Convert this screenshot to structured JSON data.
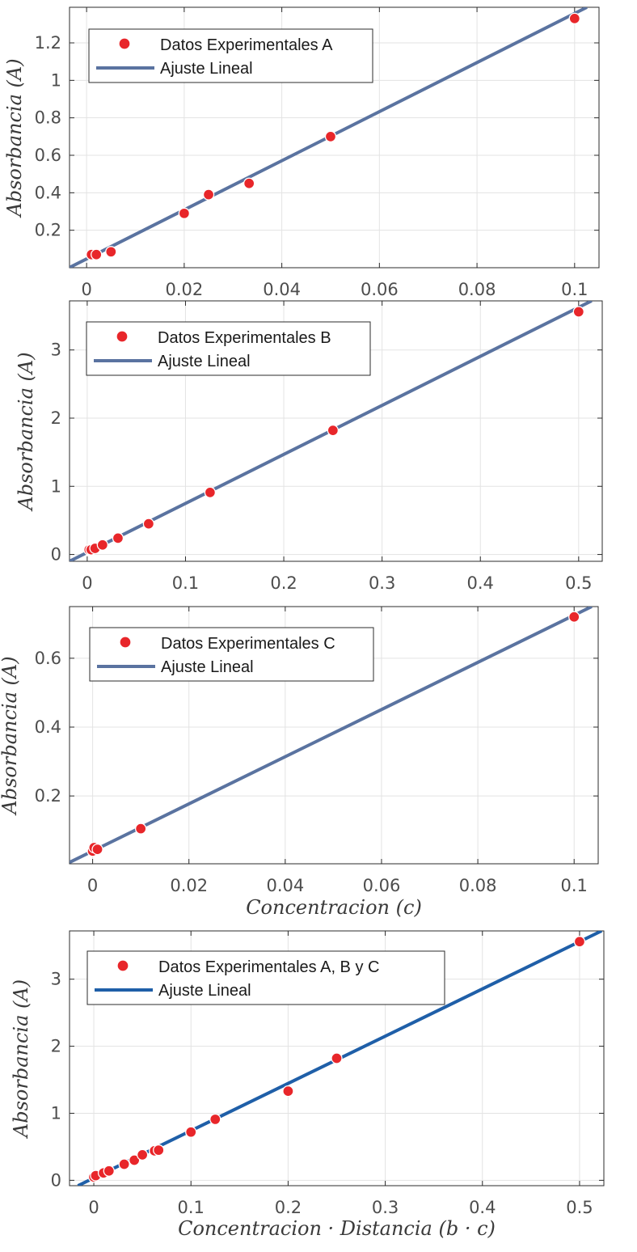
{
  "chart_data": [
    {
      "type": "scatter",
      "xlabel": "",
      "ylabel": "Absorbancia (A)",
      "xlim": [
        -0.0035,
        0.105
      ],
      "ylim": [
        0.0,
        1.39
      ],
      "xticks": [
        0,
        0.02,
        0.04,
        0.06,
        0.08,
        0.1
      ],
      "xtick_labels": [
        "0",
        "0.02",
        "0.04",
        "0.06",
        "0.08",
        "0.1"
      ],
      "yticks": [
        0.2,
        0.4,
        0.6,
        0.8,
        1.0,
        1.2
      ],
      "ytick_labels": [
        "0.2",
        "0.4",
        "0.6",
        "0.8",
        "1",
        "1.2"
      ],
      "grid": true,
      "legend_position": "top-left",
      "points": {
        "name": "Datos Experimentales A",
        "x": [
          0.001,
          0.002,
          0.005,
          0.02,
          0.025,
          0.0333,
          0.05,
          0.1
        ],
        "y": [
          0.07,
          0.07,
          0.085,
          0.29,
          0.39,
          0.45,
          0.7,
          1.33
        ],
        "color": "#e8262a"
      },
      "fit": {
        "name": "Ajuste Lineal",
        "slope": 13.1,
        "intercept": 0.047,
        "color": "#5a73a0"
      }
    },
    {
      "type": "scatter",
      "xlabel": "",
      "ylabel": "Absorbancia (A)",
      "xlim": [
        -0.018,
        0.524
      ],
      "ylim": [
        -0.1,
        3.72
      ],
      "xticks": [
        0,
        0.1,
        0.2,
        0.3,
        0.4,
        0.5
      ],
      "xtick_labels": [
        "0",
        "0.1",
        "0.2",
        "0.3",
        "0.4",
        "0.5"
      ],
      "yticks": [
        0,
        1,
        2,
        3
      ],
      "ytick_labels": [
        "0",
        "1",
        "2",
        "3"
      ],
      "grid": true,
      "legend_position": "top-left",
      "points": {
        "name": "Datos Experimentales B",
        "x": [
          0.002,
          0.004,
          0.008,
          0.0156,
          0.0313,
          0.0625,
          0.125,
          0.25,
          0.5
        ],
        "y": [
          0.07,
          0.07,
          0.09,
          0.14,
          0.24,
          0.45,
          0.91,
          1.82,
          3.56
        ],
        "color": "#e8262a"
      },
      "fit": {
        "name": "Ajuste Lineal",
        "slope": 7.19,
        "intercept": 0.03,
        "color": "#5a73a0"
      }
    },
    {
      "type": "scatter",
      "xlabel": "Concentracion (c)",
      "ylabel": "Absorbancia (A)",
      "xlim": [
        -0.0048,
        0.105
      ],
      "ylim": [
        0.003,
        0.75
      ],
      "xticks": [
        0,
        0.02,
        0.04,
        0.06,
        0.08,
        0.1
      ],
      "xtick_labels": [
        "0",
        "0.02",
        "0.04",
        "0.06",
        "0.08",
        "0.1"
      ],
      "yticks": [
        0.2,
        0.4,
        0.6
      ],
      "ytick_labels": [
        "0.2",
        "0.4",
        "0.6"
      ],
      "grid": true,
      "legend_position": "top-left",
      "points": {
        "name": "Datos Experimentales C",
        "x": [
          0.0,
          0.0003,
          0.001,
          0.01,
          0.1
        ],
        "y": [
          0.04,
          0.05,
          0.045,
          0.105,
          0.72
        ],
        "color": "#e8262a"
      },
      "fit": {
        "name": "Ajuste Lineal",
        "slope": 6.85,
        "intercept": 0.04,
        "color": "#5a73a0"
      }
    },
    {
      "type": "scatter",
      "xlabel": "Concentracion · Distancia (b · c)",
      "ylabel": "Absorbancia (A)",
      "xlim": [
        -0.025,
        0.525
      ],
      "ylim": [
        -0.08,
        3.72
      ],
      "xticks": [
        0,
        0.1,
        0.2,
        0.3,
        0.4,
        0.5
      ],
      "xtick_labels": [
        "0",
        "0.1",
        "0.2",
        "0.3",
        "0.4",
        "0.5"
      ],
      "yticks": [
        0,
        1,
        2,
        3
      ],
      "ytick_labels": [
        "0",
        "1",
        "2",
        "3"
      ],
      "grid": true,
      "legend_position": "top-left",
      "points": {
        "name": "Datos Experimentales  A, B y C",
        "x": [
          0.0,
          0.002,
          0.01,
          0.0156,
          0.0313,
          0.0417,
          0.05,
          0.0625,
          0.0667,
          0.1,
          0.125,
          0.2,
          0.25,
          0.5
        ],
        "y": [
          0.05,
          0.07,
          0.11,
          0.14,
          0.24,
          0.3,
          0.38,
          0.44,
          0.45,
          0.72,
          0.91,
          1.33,
          1.82,
          3.56
        ],
        "color": "#e8262a"
      },
      "fit": {
        "name": "Ajuste Lineal",
        "slope": 7.05,
        "intercept": 0.035,
        "color": "#1f5fa8"
      }
    }
  ]
}
